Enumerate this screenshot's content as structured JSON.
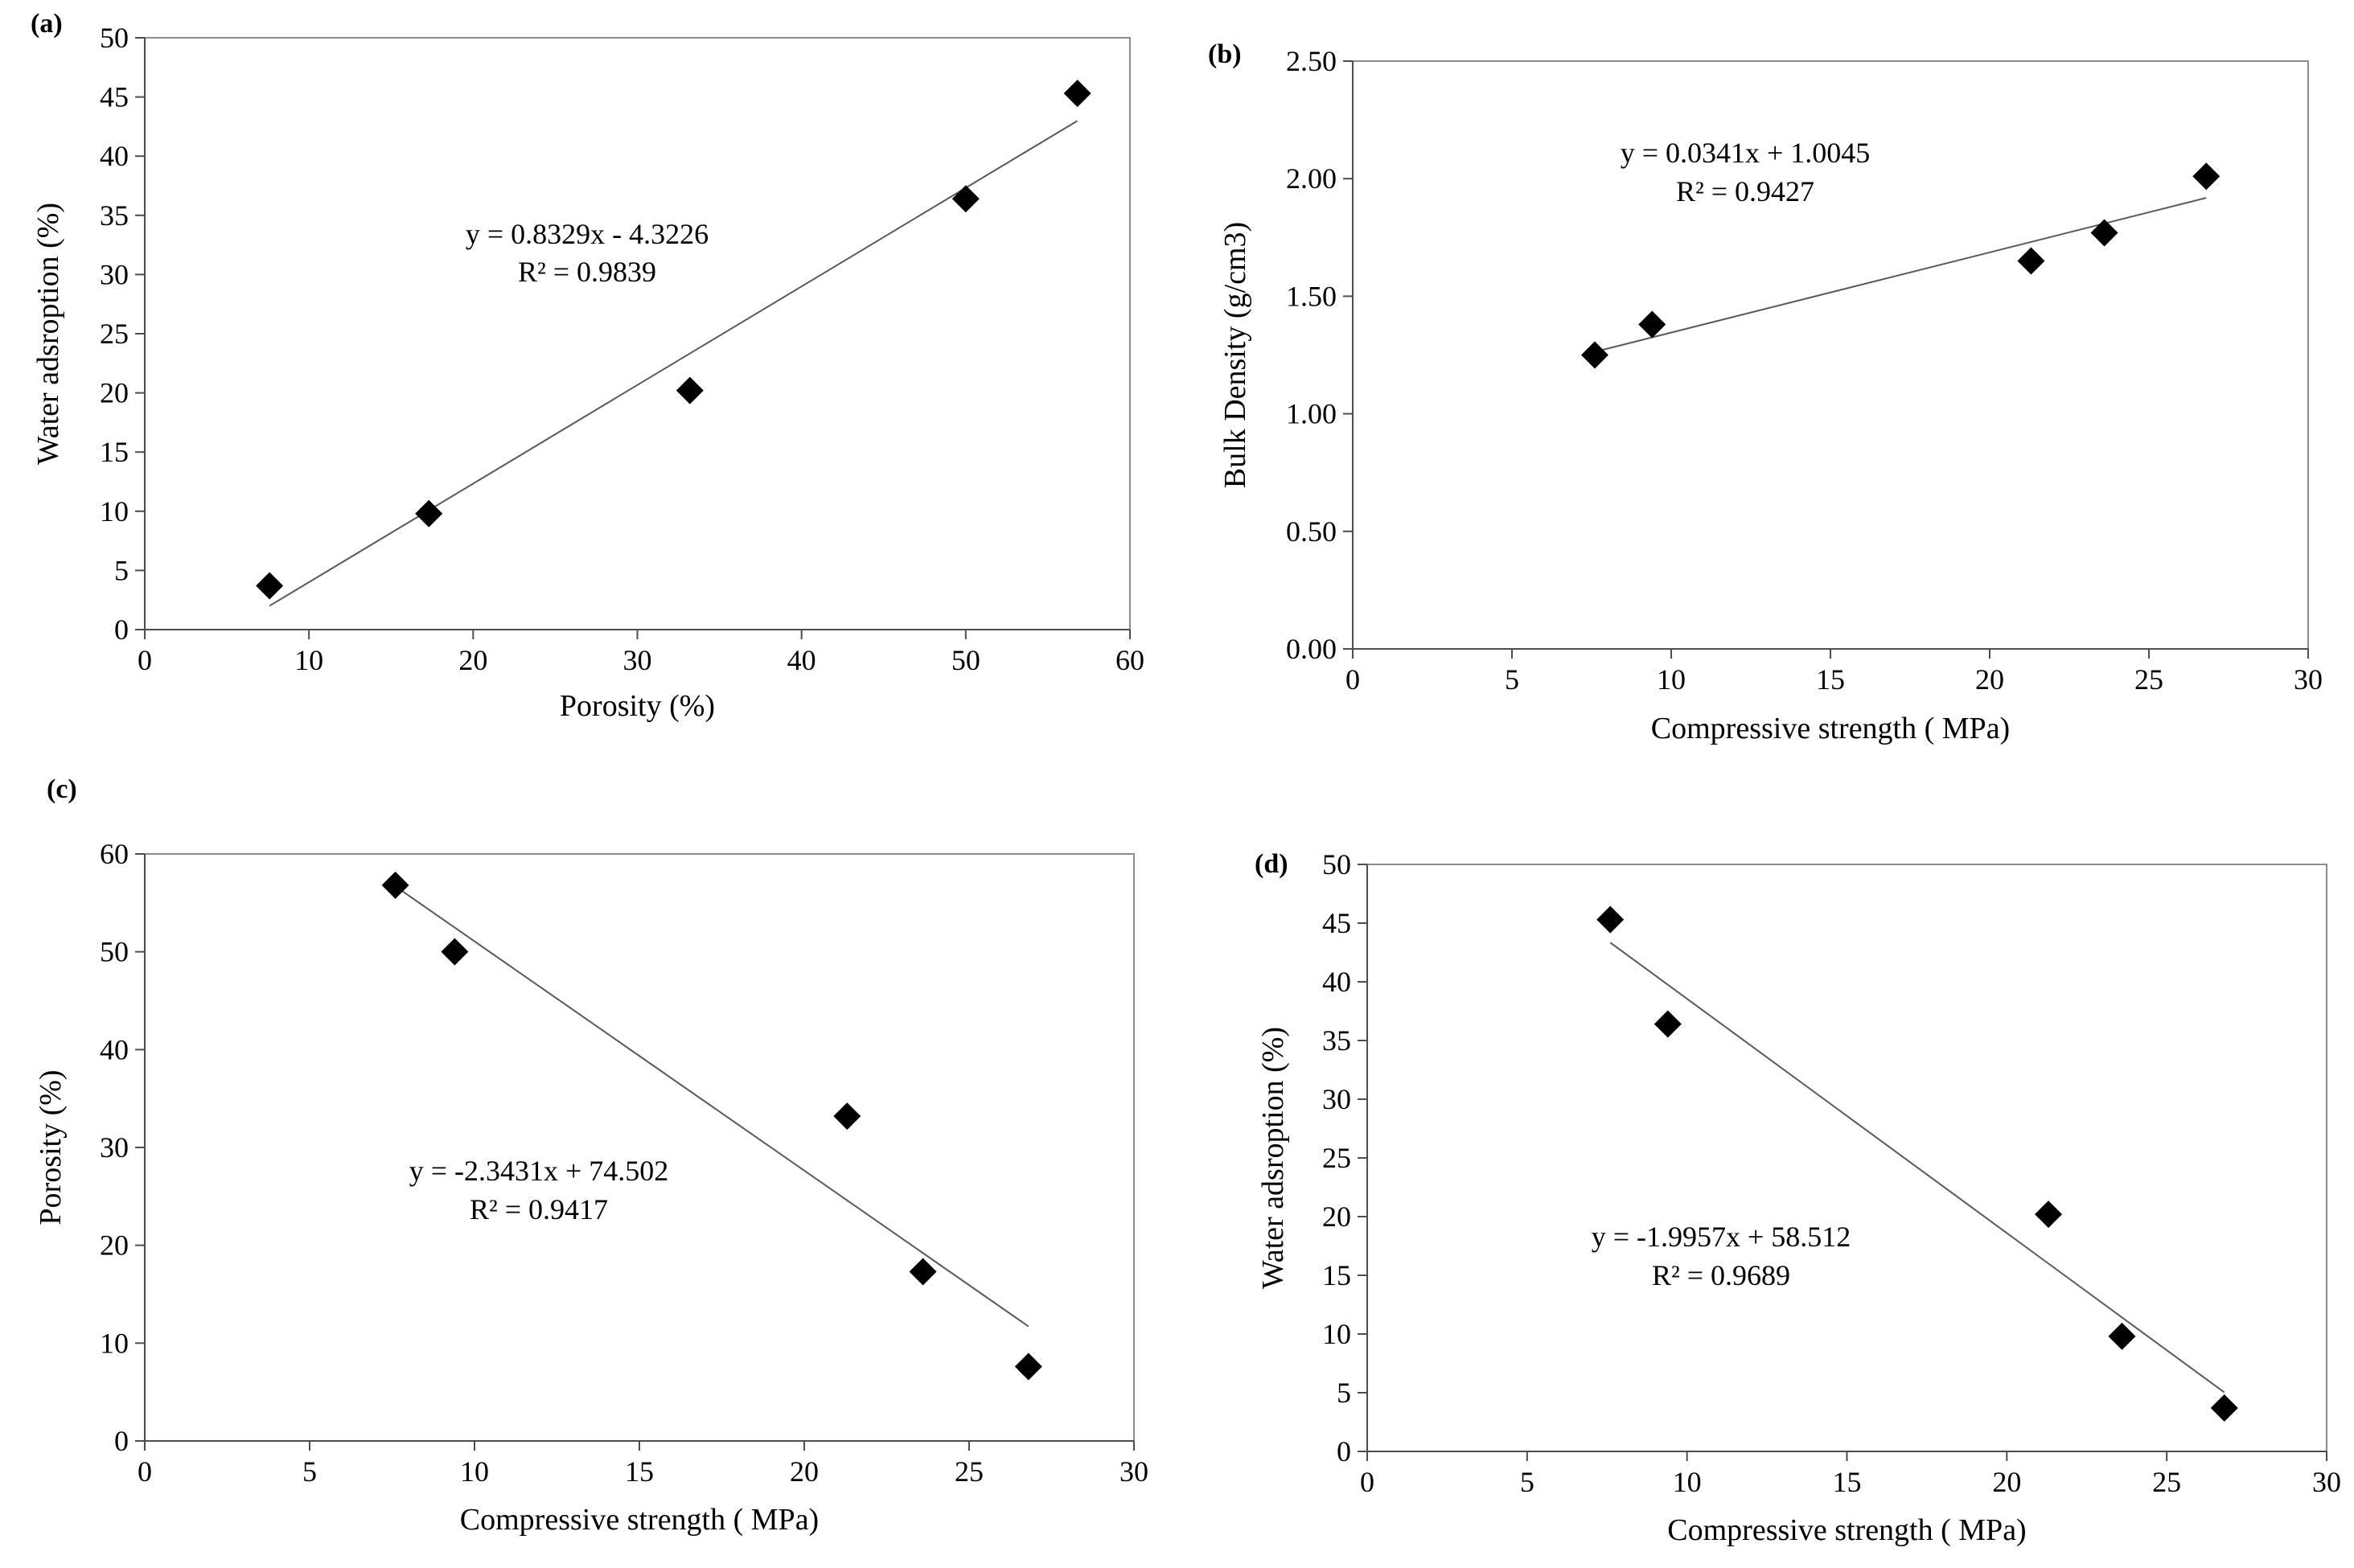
{
  "chart_data": [
    {
      "type": "scatter",
      "panel_label": "(a)",
      "xlabel": "Porosity (%)",
      "ylabel": "Water adsroption  (%)",
      "xlim": [
        0,
        60
      ],
      "ylim": [
        0,
        50
      ],
      "xticks": [
        0,
        10,
        20,
        30,
        40,
        50,
        60
      ],
      "yticks": [
        0,
        5,
        10,
        15,
        20,
        25,
        30,
        35,
        40,
        45,
        50
      ],
      "tick_decimals": 0,
      "x": [
        7.6,
        17.3,
        33.2,
        50.0,
        56.8
      ],
      "y": [
        3.7,
        9.8,
        20.2,
        36.4,
        45.3
      ],
      "trendline": {
        "slope": 0.8329,
        "intercept": -4.3226,
        "x_range": [
          7.6,
          56.8
        ]
      },
      "equation": "y = 0.8329x - 4.3226",
      "r_squared": "R² = 0.9839",
      "marker_color": "#000000",
      "line_color": "#595959"
    },
    {
      "type": "scatter",
      "panel_label": "(b)",
      "xlabel": "Compressive strength ( MPa)",
      "ylabel": "Bulk Density  (g/cm3)",
      "xlim": [
        0,
        30
      ],
      "ylim": [
        0,
        2.5
      ],
      "xticks": [
        0,
        5,
        10,
        15,
        20,
        25,
        30
      ],
      "yticks": [
        0,
        0.5,
        1.0,
        1.5,
        2.0,
        2.5
      ],
      "tick_decimals": 2,
      "x": [
        7.6,
        9.4,
        21.3,
        23.6,
        26.8
      ],
      "y": [
        1.25,
        1.38,
        1.65,
        1.77,
        2.01
      ],
      "trendline": {
        "slope": 0.0341,
        "intercept": 1.0045,
        "x_range": [
          7.6,
          26.8
        ]
      },
      "equation": "y = 0.0341x + 1.0045",
      "r_squared": "R² = 0.9427",
      "marker_color": "#000000",
      "line_color": "#595959"
    },
    {
      "type": "scatter",
      "panel_label": "(c)",
      "xlabel": "Compressive strength ( MPa)",
      "ylabel": "Porosity (%)",
      "xlim": [
        0,
        30
      ],
      "ylim": [
        0,
        60
      ],
      "xticks": [
        0,
        5,
        10,
        15,
        20,
        25,
        30
      ],
      "yticks": [
        0,
        10,
        20,
        30,
        40,
        50,
        60
      ],
      "tick_decimals": 0,
      "x": [
        7.6,
        9.4,
        21.3,
        23.6,
        26.8
      ],
      "y": [
        56.8,
        50.0,
        33.2,
        17.3,
        7.6
      ],
      "trendline": {
        "slope": -2.3431,
        "intercept": 74.502,
        "x_range": [
          7.6,
          26.8
        ]
      },
      "equation": "y = -2.3431x + 74.502",
      "r_squared": "R² = 0.9417",
      "marker_color": "#000000",
      "line_color": "#595959"
    },
    {
      "type": "scatter",
      "panel_label": "(d)",
      "xlabel": "Compressive strength ( MPa)",
      "ylabel": "Water adsroption  (%)",
      "xlim": [
        0,
        30
      ],
      "ylim": [
        0,
        50
      ],
      "xticks": [
        0,
        5,
        10,
        15,
        20,
        25,
        30
      ],
      "yticks": [
        0,
        5,
        10,
        15,
        20,
        25,
        30,
        35,
        40,
        45,
        50
      ],
      "tick_decimals": 0,
      "x": [
        7.6,
        9.4,
        21.3,
        23.6,
        26.8
      ],
      "y": [
        45.3,
        36.4,
        20.2,
        9.8,
        3.7
      ],
      "trendline": {
        "slope": -1.9957,
        "intercept": 58.512,
        "x_range": [
          7.6,
          26.8
        ]
      },
      "equation": "y = -1.9957x + 58.512",
      "r_squared": "R² = 0.9689",
      "marker_color": "#000000",
      "line_color": "#595959"
    }
  ]
}
